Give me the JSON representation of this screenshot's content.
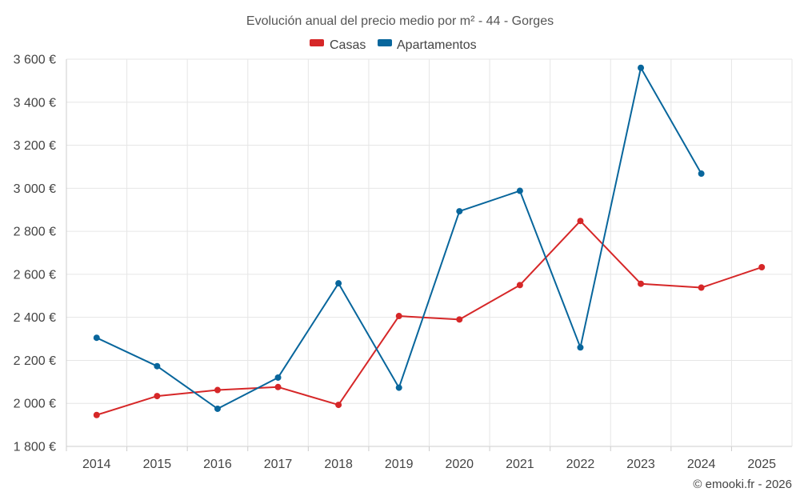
{
  "chart_data": {
    "type": "line",
    "title": "Evolución anual del precio medio por m² - 44 - Gorges",
    "categories": [
      "2014",
      "2015",
      "2016",
      "2017",
      "2018",
      "2019",
      "2020",
      "2021",
      "2022",
      "2023",
      "2024",
      "2025"
    ],
    "series": [
      {
        "name": "Casas",
        "color": "#d62728",
        "values": [
          1946,
          2034,
          2062,
          2076,
          1993,
          2406,
          2390,
          2550,
          2848,
          2556,
          2538,
          2633
        ]
      },
      {
        "name": "Apartamentos",
        "color": "#08669c",
        "values": [
          2305,
          2173,
          1975,
          2120,
          2558,
          2073,
          2893,
          2988,
          2260,
          3560,
          3068,
          null
        ]
      }
    ],
    "ylim": [
      1800,
      3600
    ],
    "yticks": [
      1800,
      2000,
      2200,
      2400,
      2600,
      2800,
      3000,
      3200,
      3400,
      3600
    ],
    "ytick_labels": [
      "1 800 €",
      "2 000 €",
      "2 200 €",
      "2 400 €",
      "2 600 €",
      "2 800 €",
      "3 000 €",
      "3 200 €",
      "3 400 €",
      "3 600 €"
    ],
    "xlabel": "",
    "ylabel": "",
    "legend_position": "top-center",
    "grid": true
  },
  "copyright": "© emooki.fr - 2026"
}
